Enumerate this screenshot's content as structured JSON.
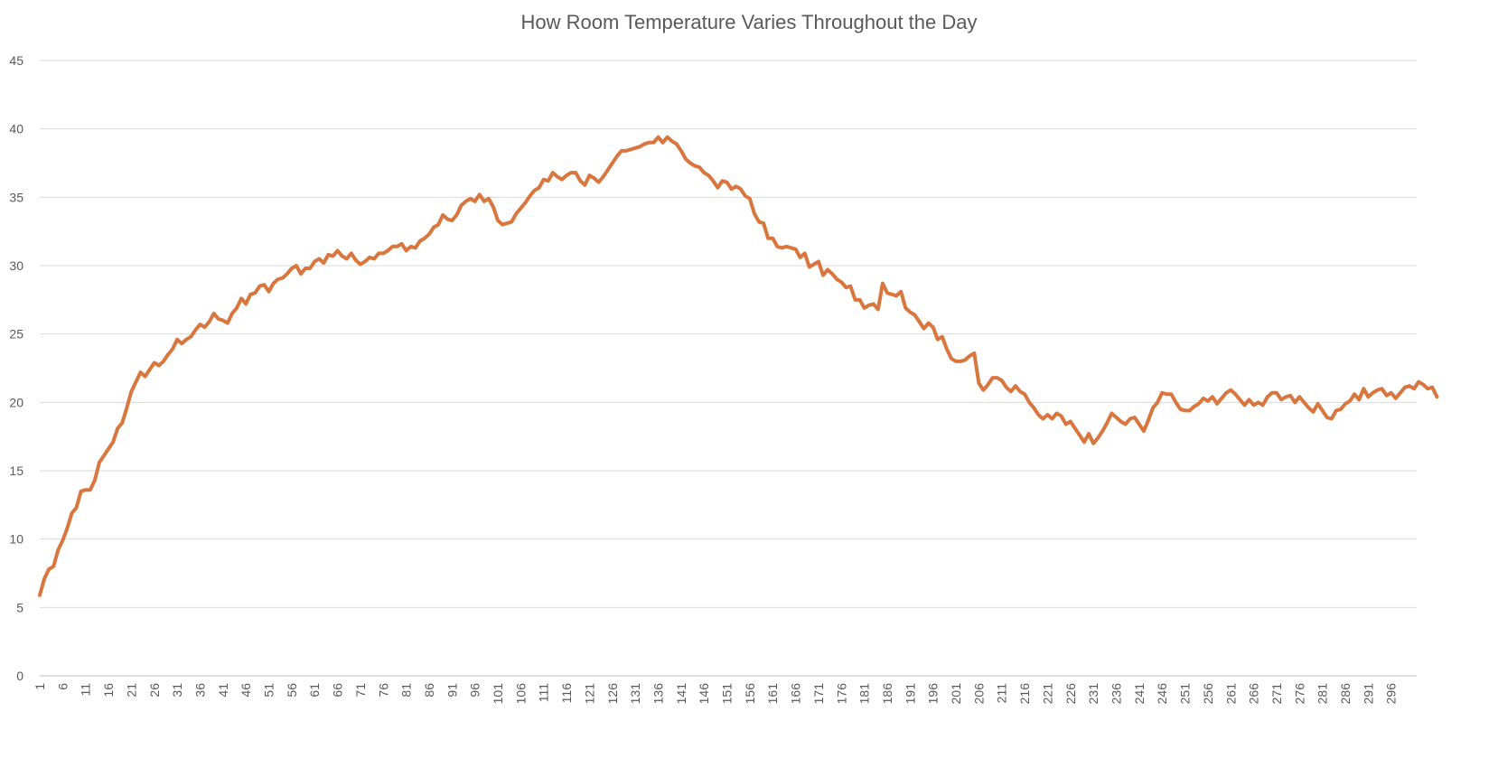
{
  "chart_data": {
    "type": "line",
    "title": "How Room Temperature Varies Throughout the Day",
    "xlabel": "",
    "ylabel": "",
    "ylim": [
      0,
      45
    ],
    "yticks": [
      0,
      5,
      10,
      15,
      20,
      25,
      30,
      35,
      40,
      45
    ],
    "x_range": [
      1,
      300
    ],
    "x_tick_labels": [
      1,
      6,
      11,
      16,
      21,
      26,
      31,
      36,
      41,
      46,
      51,
      56,
      61,
      66,
      71,
      76,
      81,
      86,
      91,
      96,
      101,
      106,
      111,
      116,
      121,
      126,
      131,
      136,
      141,
      146,
      151,
      156,
      161,
      166,
      171,
      176,
      181,
      186,
      191,
      196,
      201,
      206,
      211,
      216,
      221,
      226,
      231,
      236,
      241,
      246,
      251,
      256,
      261,
      266,
      271,
      276,
      281,
      286,
      291,
      296
    ],
    "grid": "horizontal",
    "legend": "none",
    "line_color": "#D9763E",
    "series": [
      {
        "values": [
          5.9,
          7.1,
          7.8,
          8.0,
          9.2,
          9.9,
          10.8,
          11.9,
          12.3,
          13.5,
          13.6,
          13.6,
          14.3,
          15.6,
          16.1,
          16.6,
          17.1,
          18.1,
          18.5,
          19.6,
          20.8,
          21.5,
          22.2,
          21.9,
          22.4,
          22.9,
          22.7,
          23.0,
          23.5,
          23.9,
          24.6,
          24.3,
          24.6,
          24.8,
          25.3,
          25.7,
          25.5,
          25.9,
          26.5,
          26.1,
          26.0,
          25.8,
          26.5,
          26.9,
          27.6,
          27.2,
          27.9,
          28.0,
          28.5,
          28.6,
          28.1,
          28.7,
          29.0,
          29.1,
          29.4,
          29.8,
          30.0,
          29.4,
          29.8,
          29.8,
          30.3,
          30.5,
          30.2,
          30.8,
          30.7,
          31.1,
          30.7,
          30.5,
          30.9,
          30.4,
          30.1,
          30.3,
          30.6,
          30.5,
          30.9,
          30.9,
          31.1,
          31.4,
          31.4,
          31.6,
          31.1,
          31.4,
          31.3,
          31.8,
          32.0,
          32.3,
          32.8,
          33.0,
          33.7,
          33.4,
          33.3,
          33.7,
          34.4,
          34.7,
          34.9,
          34.7,
          35.2,
          34.7,
          34.9,
          34.3,
          33.3,
          33.0,
          33.1,
          33.2,
          33.8,
          34.2,
          34.6,
          35.1,
          35.5,
          35.7,
          36.3,
          36.2,
          36.8,
          36.5,
          36.3,
          36.6,
          36.8,
          36.8,
          36.2,
          35.9,
          36.6,
          36.4,
          36.1,
          36.5,
          37.0,
          37.5,
          38.0,
          38.4,
          38.4,
          38.5,
          38.6,
          38.7,
          38.9,
          39.0,
          39.0,
          39.4,
          39.0,
          39.4,
          39.1,
          38.9,
          38.4,
          37.8,
          37.5,
          37.3,
          37.2,
          36.8,
          36.6,
          36.2,
          35.7,
          36.2,
          36.1,
          35.6,
          35.8,
          35.6,
          35.1,
          34.9,
          33.8,
          33.2,
          33.1,
          32.0,
          32.0,
          31.4,
          31.3,
          31.4,
          31.3,
          31.2,
          30.6,
          30.9,
          29.9,
          30.1,
          30.3,
          29.3,
          29.7,
          29.4,
          29.0,
          28.8,
          28.4,
          28.5,
          27.5,
          27.5,
          26.9,
          27.1,
          27.2,
          26.8,
          28.7,
          28.0,
          27.9,
          27.8,
          28.1,
          26.9,
          26.6,
          26.4,
          25.9,
          25.4,
          25.8,
          25.5,
          24.6,
          24.8,
          23.9,
          23.2,
          23.0,
          23.0,
          23.1,
          23.4,
          23.6,
          21.4,
          20.9,
          21.3,
          21.8,
          21.8,
          21.6,
          21.1,
          20.8,
          21.2,
          20.8,
          20.6,
          20.0,
          19.6,
          19.1,
          18.8,
          19.1,
          18.8,
          19.2,
          19.0,
          18.4,
          18.6,
          18.1,
          17.6,
          17.1,
          17.7,
          17.0,
          17.4,
          17.9,
          18.5,
          19.2,
          18.9,
          18.6,
          18.4,
          18.8,
          18.9,
          18.4,
          17.9,
          18.7,
          19.6,
          20.0,
          20.7,
          20.6,
          20.6,
          20.0,
          19.5,
          19.4,
          19.4,
          19.7,
          19.9,
          20.3,
          20.1,
          20.4,
          19.9,
          20.3,
          20.7,
          20.9,
          20.6,
          20.2,
          19.8,
          20.2,
          19.8,
          20.0,
          19.8,
          20.4,
          20.7,
          20.7,
          20.2,
          20.4,
          20.5,
          20.0,
          20.4,
          20.0,
          19.6,
          19.3,
          19.9,
          19.4,
          18.9,
          18.8,
          19.4,
          19.5,
          19.9,
          20.1,
          20.6,
          20.2,
          21.0,
          20.4,
          20.7,
          20.9,
          21.0,
          20.5,
          20.7,
          20.3,
          20.7,
          21.1,
          21.2,
          21.0,
          21.5,
          21.3,
          21.0,
          21.1,
          20.4
        ]
      }
    ]
  }
}
